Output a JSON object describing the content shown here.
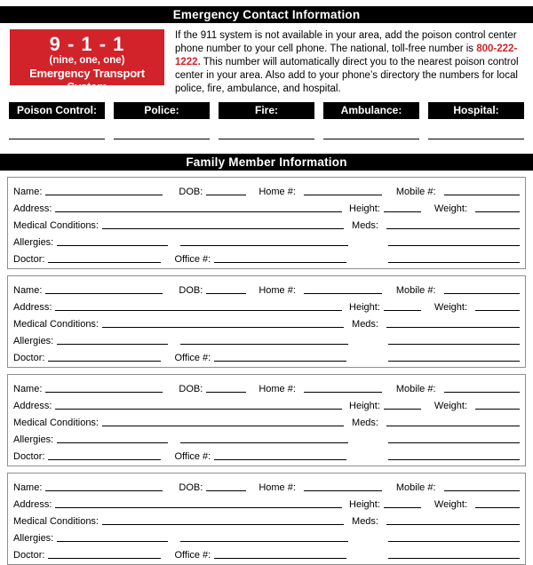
{
  "header": {
    "title": "Emergency Contact Information"
  },
  "emergency_box": {
    "number": "9 - 1 - 1",
    "words": "(nine, one, one)",
    "subtitle": "Emergency Transport System",
    "bg_color": "#D2232A",
    "text_color": "#FFFFFF"
  },
  "intro": {
    "text_before": "If the 911 system is not available in your area, add the poison control center phone number to your cell phone. The national, toll-free number is ",
    "phone": "800-222-1222.",
    "text_after": " This number will automatically direct you to the nearest poison control center in your area. Also add to your phone’s directory the numbers for local police, fire, ambulance, and hospital.",
    "phone_color": "#D2232A"
  },
  "contacts": {
    "items": [
      {
        "label": "Poison Control:"
      },
      {
        "label": "Police:"
      },
      {
        "label": "Fire:"
      },
      {
        "label": "Ambulance:"
      },
      {
        "label": "Hospital:"
      }
    ],
    "bar_color": "#000000"
  },
  "family_section": {
    "title": "Family Member Information",
    "member_count": 4,
    "labels": {
      "name": "Name:",
      "dob": "DOB:",
      "home": "Home #:",
      "mobile": "Mobile #:",
      "address": "Address:",
      "height": "Height:",
      "weight": "Weight:",
      "medical": "Medical Conditions:",
      "meds": "Meds:",
      "allergies": "Allergies:",
      "doctor": "Doctor:",
      "office": "Office #:"
    }
  }
}
